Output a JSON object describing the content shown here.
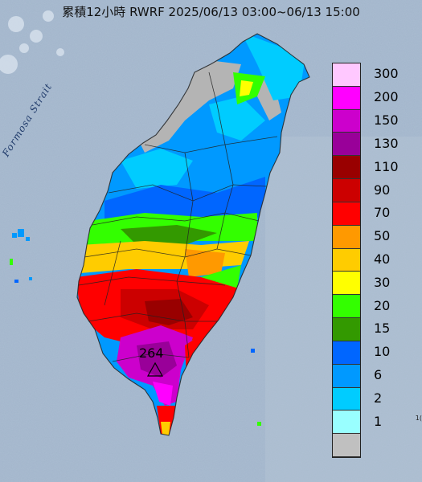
{
  "title": "累積12小時 RWRF 2025/06/13 03:00~06/13 15:00",
  "strait_label": "Formosa Strait",
  "max_value_label": "264",
  "corner_text": "1(",
  "legend": {
    "levels": [
      {
        "label": "300",
        "color": "#ffc8ff"
      },
      {
        "label": "200",
        "color": "#ff00ff"
      },
      {
        "label": "150",
        "color": "#cc00cc"
      },
      {
        "label": "130",
        "color": "#990099"
      },
      {
        "label": "110",
        "color": "#990000"
      },
      {
        "label": "90",
        "color": "#cc0000"
      },
      {
        "label": "70",
        "color": "#ff0000"
      },
      {
        "label": "50",
        "color": "#ff9900"
      },
      {
        "label": "40",
        "color": "#ffcc00"
      },
      {
        "label": "30",
        "color": "#ffff00"
      },
      {
        "label": "20",
        "color": "#33ff00"
      },
      {
        "label": "15",
        "color": "#339900"
      },
      {
        "label": "10",
        "color": "#0066ff"
      },
      {
        "label": "6",
        "color": "#0099ff"
      },
      {
        "label": "2",
        "color": "#00ccff"
      },
      {
        "label": "1",
        "color": "#99ffff"
      },
      {
        "label": "",
        "color": "#c0c0c0"
      }
    ]
  },
  "colors": {
    "sea": "#9fb2c8",
    "no_rain": "#b4b4b4"
  }
}
